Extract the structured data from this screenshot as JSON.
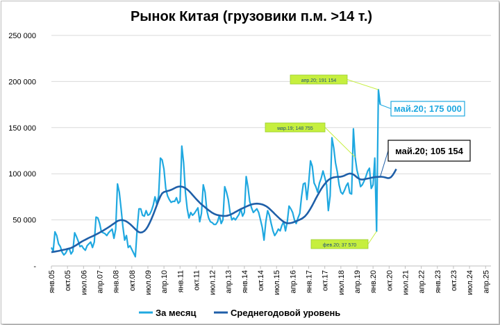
{
  "chart_data": {
    "type": "line",
    "title": "Рынок Китая (грузовики п.м. >14 т.)",
    "xlabel": "",
    "ylabel": "",
    "ylim": [
      0,
      250000
    ],
    "y_ticks": [
      0,
      50000,
      100000,
      150000,
      200000,
      250000
    ],
    "y_tick_labels": [
      "-",
      "50 000",
      "100 000",
      "150 000",
      "200 000",
      "250 000"
    ],
    "x_start": "янв.05",
    "x_months_total": 246,
    "x_tick_labels": [
      "янв.05",
      "окт.05",
      "июл.06",
      "апр.07",
      "янв.08",
      "окт.08",
      "июл.09",
      "апр.10",
      "янв.11",
      "окт.11",
      "июл.12",
      "апр.13",
      "янв.14",
      "окт.14",
      "июл.15",
      "апр.16",
      "янв.17",
      "окт.17",
      "июл.18",
      "апр.19",
      "янв.20",
      "окт.20",
      "июл.21",
      "апр.22",
      "янв.23",
      "окт.23",
      "июл.24",
      "апр.25"
    ],
    "gridlines": true,
    "legend_position": "bottom",
    "colors": {
      "monthly": "#1fa8e0",
      "average": "#1f5fa8",
      "grid": "#d9d9d9",
      "callout_small_bg": "#c6ef3e",
      "callout_big_bg": "#ffffff"
    },
    "series": [
      {
        "name": "За месяц",
        "values": [
          20000,
          16000,
          37000,
          33000,
          24000,
          21000,
          15000,
          12000,
          14000,
          18000,
          19000,
          13000,
          16000,
          36000,
          32000,
          27000,
          21000,
          22000,
          19000,
          17000,
          22000,
          24000,
          26000,
          20000,
          26000,
          53000,
          52000,
          46000,
          37000,
          36000,
          35000,
          33000,
          36000,
          38000,
          40000,
          30000,
          40000,
          89000,
          80000,
          62000,
          43000,
          28000,
          33000,
          20000,
          22000,
          18000,
          14000,
          10000,
          40000,
          62000,
          62000,
          55000,
          54000,
          60000,
          55000,
          56000,
          60000,
          66000,
          75000,
          67000,
          76000,
          117000,
          115000,
          105000,
          84000,
          76000,
          72000,
          69000,
          70000,
          70000,
          74000,
          68000,
          70000,
          130000,
          112000,
          80000,
          62000,
          52000,
          58000,
          55000,
          57000,
          60000,
          63000,
          48000,
          57000,
          88000,
          80000,
          60000,
          52000,
          48000,
          47000,
          45000,
          45000,
          48000,
          55000,
          46000,
          50000,
          86000,
          80000,
          72000,
          58000,
          50000,
          52000,
          50000,
          53000,
          56000,
          62000,
          54000,
          58000,
          97000,
          86000,
          70000,
          63000,
          58000,
          60000,
          62000,
          58000,
          50000,
          42000,
          28000,
          48000,
          60000,
          55000,
          46000,
          38000,
          33000,
          36000,
          40000,
          38000,
          44000,
          48000,
          38000,
          48000,
          65000,
          62000,
          58000,
          50000,
          46000,
          52000,
          57000,
          75000,
          89000,
          90000,
          72000,
          90000,
          114000,
          108000,
          90000,
          86000,
          80000,
          90000,
          95000,
          103000,
          96000,
          88000,
          60000,
          76000,
          139000,
          128000,
          112000,
          102000,
          88000,
          80000,
          78000,
          82000,
          87000,
          90000,
          79000,
          78000,
          148755,
          118000,
          104000,
          96000,
          86000,
          88000,
          92000,
          97000,
          103000,
          106000,
          84000,
          88000,
          117000,
          37570,
          191154,
          175000
        ]
      },
      {
        "name": "Среднегодовой уровень",
        "values": [
          15000,
          15300,
          15600,
          16000,
          16300,
          16800,
          17200,
          17600,
          18000,
          18500,
          19000,
          19500,
          20500,
          21500,
          22700,
          24000,
          25200,
          26400,
          27500,
          28500,
          29500,
          30500,
          31400,
          32200,
          33200,
          34200,
          35200,
          36200,
          37300,
          38400,
          39600,
          40800,
          42000,
          43300,
          44700,
          46000,
          47400,
          48700,
          49500,
          49800,
          49700,
          49200,
          48300,
          47000,
          45500,
          43700,
          41700,
          39800,
          38000,
          36700,
          36200,
          36700,
          37900,
          40000,
          43000,
          46700,
          51000,
          55700,
          60700,
          65900,
          71000,
          75500,
          78800,
          80200,
          80800,
          81300,
          81800,
          82500,
          83400,
          84400,
          85400,
          86000,
          86200,
          86000,
          85400,
          84400,
          83000,
          81300,
          79200,
          77000,
          74800,
          72700,
          70600,
          68600,
          66800,
          65200,
          63600,
          62000,
          60500,
          59000,
          57700,
          56600,
          55800,
          55200,
          54800,
          54500,
          54300,
          54200,
          54400,
          54800,
          55500,
          56400,
          57400,
          58500,
          59600,
          60700,
          61700,
          62600,
          63500,
          64400,
          65200,
          66000,
          66700,
          67200,
          67500,
          67600,
          67500,
          67200,
          66700,
          66000,
          65000,
          63700,
          62100,
          60300,
          58400,
          56500,
          54600,
          52700,
          50900,
          49300,
          47900,
          46900,
          46400,
          46300,
          46600,
          47100,
          47800,
          48600,
          49400,
          50200,
          51100,
          52400,
          54100,
          56300,
          59000,
          62200,
          65700,
          69400,
          73100,
          76700,
          80200,
          83400,
          86400,
          89000,
          91300,
          93200,
          94600,
          95500,
          96100,
          96400,
          96600,
          96600,
          96800,
          97300,
          98000,
          99000,
          99800,
          100200,
          100000,
          99200,
          97800,
          96100,
          94700,
          93900,
          93700,
          94000,
          94400,
          94800,
          95200,
          95600,
          96000,
          96300,
          96500,
          96600,
          96700,
          96700,
          96400,
          95900,
          95300,
          95300,
          96200,
          98500,
          101500,
          105154
        ]
      }
    ],
    "annotations": [
      {
        "label": "апр.20;  191 154",
        "style": "small"
      },
      {
        "label": "мар.19; 148 755",
        "style": "small"
      },
      {
        "label": "фев.20; 37 570",
        "style": "small"
      },
      {
        "label": "май.20;  175 000",
        "style": "big-monthly"
      },
      {
        "label": "май.20;  105 154",
        "style": "big-average"
      }
    ]
  }
}
